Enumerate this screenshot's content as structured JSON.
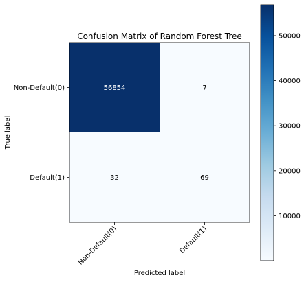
{
  "chart_data": {
    "type": "heatmap",
    "title": "Confusion Matrix of Random Forest Tree",
    "xlabel": "Predicted label",
    "ylabel": "True label",
    "x_categories": [
      "Non-Default(0)",
      "Default(1)"
    ],
    "y_categories": [
      "Non-Default(0)",
      "Default(1)"
    ],
    "values": [
      [
        56854,
        7
      ],
      [
        32,
        69
      ]
    ],
    "colormap": "Blues",
    "color_low": "#f7fbff",
    "color_high": "#08306b",
    "colorbar": {
      "min": 7,
      "max": 56854,
      "ticks": [
        10000,
        20000,
        30000,
        40000,
        50000
      ]
    },
    "text_color_dark_cell": "#ffffff",
    "text_color_light_cell": "#000000"
  }
}
